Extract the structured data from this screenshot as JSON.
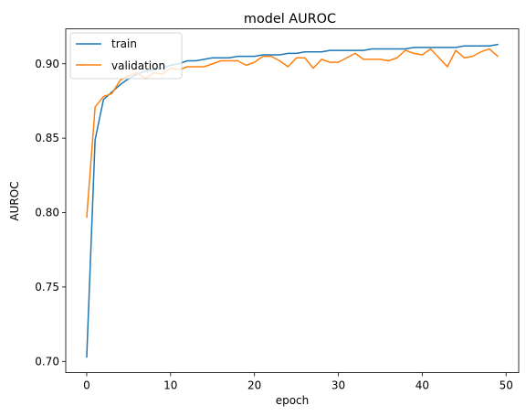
{
  "chart_data": {
    "type": "line",
    "title": "model AUROC",
    "xlabel": "epoch",
    "ylabel": "AUROC",
    "xlim": [
      -2.5,
      51.5
    ],
    "ylim": [
      0.6925,
      0.9235
    ],
    "xticks": [
      0,
      10,
      20,
      30,
      40,
      50
    ],
    "yticks": [
      0.7,
      0.75,
      0.8,
      0.85,
      0.9
    ],
    "ytick_labels": [
      "0.70",
      "0.75",
      "0.80",
      "0.85",
      "0.90"
    ],
    "grid": false,
    "legend": "top-left",
    "x": [
      0,
      1,
      2,
      3,
      4,
      5,
      6,
      7,
      8,
      9,
      10,
      11,
      12,
      13,
      14,
      15,
      16,
      17,
      18,
      19,
      20,
      21,
      22,
      23,
      24,
      25,
      26,
      27,
      28,
      29,
      30,
      31,
      32,
      33,
      34,
      35,
      36,
      37,
      38,
      39,
      40,
      41,
      42,
      43,
      44,
      45,
      46,
      47,
      48,
      49
    ],
    "series": [
      {
        "name": "train",
        "color": "#1f77b4",
        "values": [
          0.703,
          0.849,
          0.876,
          0.881,
          0.886,
          0.89,
          0.893,
          0.895,
          0.896,
          0.897,
          0.899,
          0.9,
          0.902,
          0.902,
          0.903,
          0.904,
          0.904,
          0.904,
          0.905,
          0.905,
          0.905,
          0.906,
          0.906,
          0.906,
          0.907,
          0.907,
          0.908,
          0.908,
          0.908,
          0.909,
          0.909,
          0.909,
          0.909,
          0.909,
          0.91,
          0.91,
          0.91,
          0.91,
          0.91,
          0.911,
          0.911,
          0.911,
          0.911,
          0.911,
          0.911,
          0.912,
          0.912,
          0.912,
          0.912,
          0.913
        ]
      },
      {
        "name": "validation",
        "color": "#ff7f0e",
        "values": [
          0.797,
          0.871,
          0.878,
          0.88,
          0.889,
          0.892,
          0.894,
          0.89,
          0.894,
          0.893,
          0.897,
          0.896,
          0.898,
          0.898,
          0.898,
          0.9,
          0.902,
          0.902,
          0.902,
          0.899,
          0.901,
          0.905,
          0.905,
          0.902,
          0.898,
          0.904,
          0.904,
          0.897,
          0.903,
          0.901,
          0.901,
          0.904,
          0.907,
          0.903,
          0.903,
          0.903,
          0.902,
          0.904,
          0.909,
          0.907,
          0.906,
          0.91,
          0.904,
          0.898,
          0.909,
          0.904,
          0.905,
          0.908,
          0.91,
          0.905
        ]
      }
    ]
  }
}
